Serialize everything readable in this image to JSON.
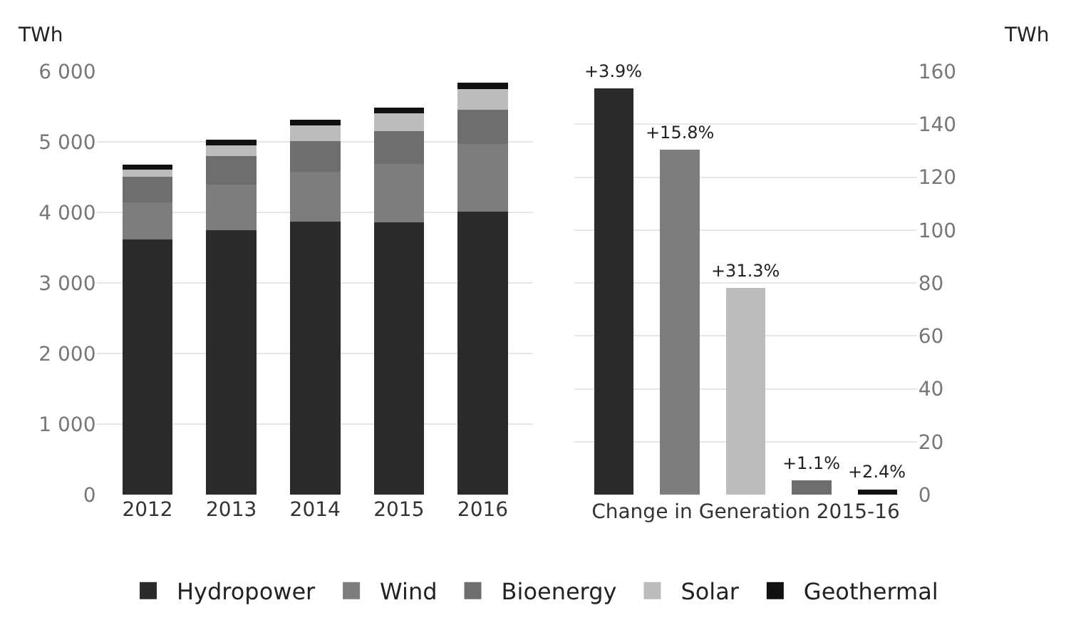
{
  "chart_data": [
    {
      "type": "bar",
      "stacked": true,
      "ylabel": "TWh",
      "categories": [
        "2012",
        "2013",
        "2014",
        "2015",
        "2016"
      ],
      "series": [
        {
          "name": "Hydropower",
          "color": "#2b2b2b",
          "values": [
            3620,
            3750,
            3870,
            3860,
            4010
          ]
        },
        {
          "name": "Wind",
          "color": "#7d7d7d",
          "values": [
            520,
            640,
            710,
            830,
            960
          ]
        },
        {
          "name": "Bioenergy",
          "color": "#6e6e6e",
          "values": [
            370,
            410,
            430,
            460,
            480
          ]
        },
        {
          "name": "Solar",
          "color": "#bcbcbc",
          "values": [
            100,
            150,
            220,
            250,
            300
          ]
        },
        {
          "name": "Geothermal",
          "color": "#111111",
          "values": [
            70,
            80,
            80,
            80,
            90
          ]
        }
      ],
      "ylim": [
        0,
        6000
      ],
      "yticks": [
        0,
        {
          "value": 1000,
          "label": "1 000"
        },
        {
          "value": 2000,
          "label": "2 000"
        },
        {
          "value": 3000,
          "label": "3 000"
        },
        {
          "value": 4000,
          "label": "4 000"
        },
        {
          "value": 5000,
          "label": "5 000"
        },
        {
          "value": 6000,
          "label": "6 000"
        }
      ],
      "grid": "y",
      "legend": "bottom"
    },
    {
      "type": "bar",
      "xlabel": "Change in Generation 2015-16",
      "ylabel": "TWh",
      "categories": [
        null,
        null,
        null,
        null,
        null
      ],
      "values": [
        153.5,
        130.5,
        78,
        5.5,
        2
      ],
      "colors": [
        "#2b2b2b",
        "#7d7d7d",
        "#bcbcbc",
        "#6e6e6e",
        "#111111"
      ],
      "annotations": [
        {
          "text": "+3.9%",
          "y": 153.5
        },
        {
          "text": "+15.8%",
          "y": 130.5
        },
        {
          "text": "+31.3%",
          "y": 78
        },
        {
          "text": "+1.1%",
          "y": 5.5
        },
        {
          "text": "+2.4%",
          "y": 2
        }
      ],
      "ylim": [
        0,
        160
      ],
      "yticks": [
        0,
        20,
        40,
        60,
        80,
        100,
        120,
        140,
        160
      ],
      "grid": "y"
    }
  ]
}
